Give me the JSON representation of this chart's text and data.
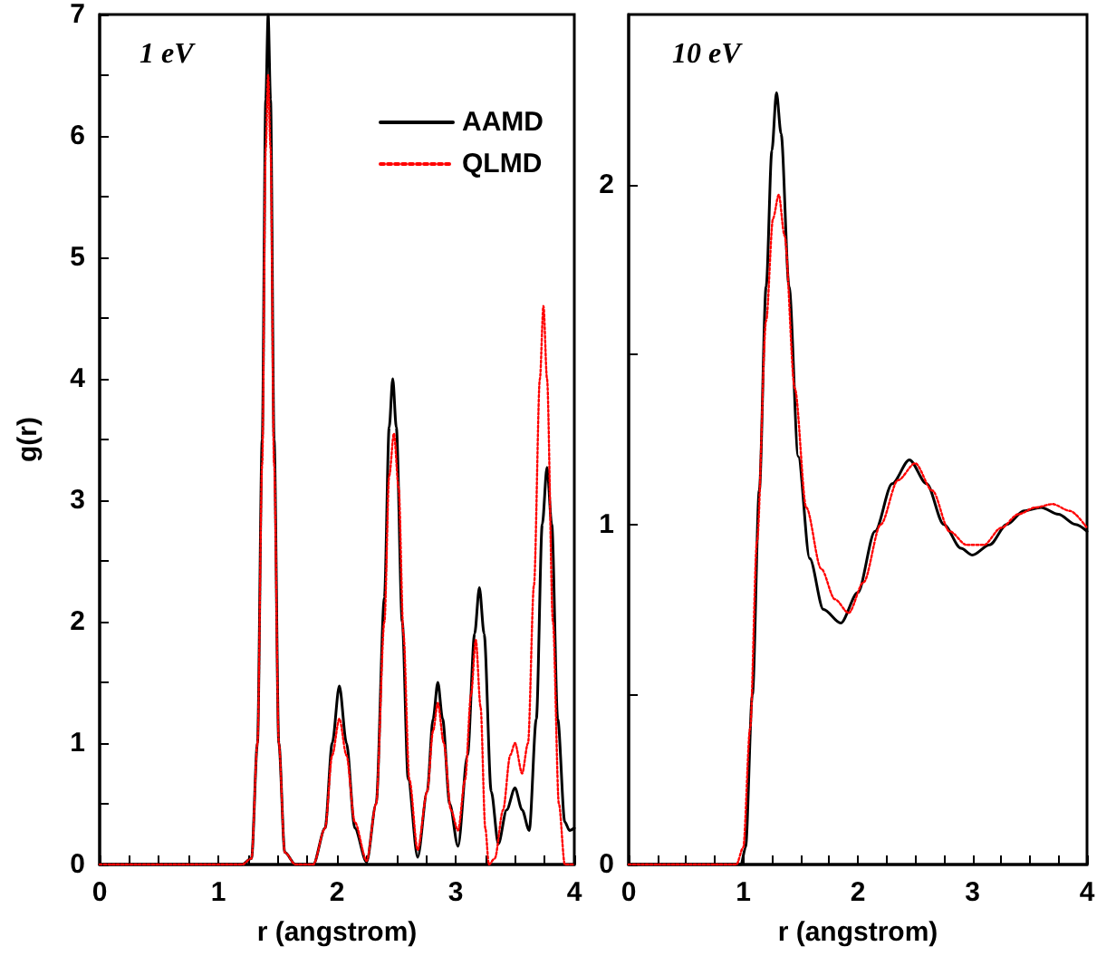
{
  "chart_data": [
    {
      "type": "line",
      "xlabel": "r (angstrom)",
      "ylabel": "g(r)",
      "annotations": [
        "1 eV"
      ],
      "legend": "top right",
      "grid": false,
      "marker": "none",
      "xlim": [
        0,
        4
      ],
      "ylim": [
        0,
        7
      ],
      "xticks": [
        0,
        {
          "value": 0.25,
          "label": null
        },
        {
          "value": 0.5,
          "label": null
        },
        {
          "value": 0.75,
          "label": null
        },
        1,
        {
          "value": 1.25,
          "label": null
        },
        {
          "value": 1.5,
          "label": null
        },
        {
          "value": 1.75,
          "label": null
        },
        2,
        {
          "value": 2.25,
          "label": null
        },
        {
          "value": 2.5,
          "label": null
        },
        {
          "value": 2.75,
          "label": null
        },
        3,
        {
          "value": 3.25,
          "label": null
        },
        {
          "value": 3.5,
          "label": null
        },
        {
          "value": 3.75,
          "label": null
        },
        4
      ],
      "yticks": [
        0,
        {
          "value": 0.5,
          "label": null
        },
        1,
        {
          "value": 1.5,
          "label": null
        },
        2,
        {
          "value": 2.5,
          "label": null
        },
        3,
        {
          "value": 3.5,
          "label": null
        },
        4,
        {
          "value": 4.5,
          "label": null
        },
        5,
        {
          "value": 5.5,
          "label": null
        },
        6,
        {
          "value": 6.5,
          "label": null
        },
        7
      ],
      "series": [
        {
          "name": "AAMD",
          "color": "#000000",
          "line_style": "solid",
          "x": [
            0,
            1.2,
            1.28,
            1.33,
            1.37,
            1.4,
            1.42,
            1.44,
            1.47,
            1.51,
            1.56,
            1.65,
            1.8,
            1.9,
            1.96,
            2.02,
            2.08,
            2.15,
            2.25,
            2.33,
            2.4,
            2.44,
            2.47,
            2.5,
            2.55,
            2.6,
            2.68,
            2.76,
            2.81,
            2.85,
            2.89,
            2.95,
            3.02,
            3.1,
            3.16,
            3.2,
            3.24,
            3.3,
            3.36,
            3.43,
            3.5,
            3.56,
            3.62,
            3.68,
            3.73,
            3.77,
            3.81,
            3.86,
            3.92,
            3.96,
            4.0
          ],
          "values": [
            0,
            0,
            0.05,
            1.0,
            3.5,
            6.3,
            7.0,
            6.3,
            3.5,
            1.0,
            0.1,
            0,
            0,
            0.3,
            1.0,
            1.47,
            1.0,
            0.3,
            0.02,
            0.5,
            2.2,
            3.6,
            4.0,
            3.6,
            2.0,
            0.7,
            0.06,
            0.6,
            1.2,
            1.5,
            1.2,
            0.5,
            0.15,
            0.9,
            1.9,
            2.28,
            1.9,
            0.6,
            0.17,
            0.45,
            0.63,
            0.45,
            0.28,
            1.2,
            2.8,
            3.27,
            2.8,
            1.2,
            0.35,
            0.28,
            0.3
          ]
        },
        {
          "name": "QLMD",
          "color": "#ff0000",
          "line_style": "dotted",
          "x": [
            0,
            1.2,
            1.28,
            1.33,
            1.37,
            1.4,
            1.42,
            1.44,
            1.47,
            1.51,
            1.56,
            1.65,
            1.8,
            1.9,
            1.96,
            2.02,
            2.08,
            2.15,
            2.25,
            2.33,
            2.4,
            2.44,
            2.48,
            2.52,
            2.56,
            2.61,
            2.68,
            2.76,
            2.81,
            2.85,
            2.9,
            2.96,
            3.02,
            3.08,
            3.13,
            3.17,
            3.21,
            3.25,
            3.28,
            3.33,
            3.4,
            3.46,
            3.5,
            3.56,
            3.61,
            3.66,
            3.71,
            3.74,
            3.77,
            3.82,
            3.87,
            3.92,
            4.0
          ],
          "values": [
            0,
            0,
            0.05,
            1.0,
            3.3,
            5.9,
            6.5,
            5.9,
            3.3,
            1.0,
            0.1,
            0,
            0,
            0.3,
            0.9,
            1.2,
            0.9,
            0.35,
            0.03,
            0.5,
            2.0,
            3.2,
            3.55,
            3.1,
            1.9,
            0.7,
            0.12,
            0.6,
            1.1,
            1.33,
            1.0,
            0.45,
            0.28,
            0.7,
            1.4,
            1.85,
            1.3,
            0.3,
            0,
            0.05,
            0.45,
            0.9,
            1.0,
            0.75,
            1.0,
            2.3,
            4.0,
            4.6,
            4.0,
            2.0,
            0.5,
            0,
            0
          ]
        }
      ]
    },
    {
      "type": "line",
      "xlabel": "r (angstrom)",
      "annotations": [
        "10 eV"
      ],
      "grid": false,
      "marker": "none",
      "xlim": [
        0,
        4
      ],
      "ylim": [
        0,
        2.5
      ],
      "xticks": [
        0,
        {
          "value": 0.25,
          "label": null
        },
        {
          "value": 0.5,
          "label": null
        },
        {
          "value": 0.75,
          "label": null
        },
        1,
        {
          "value": 1.25,
          "label": null
        },
        {
          "value": 1.5,
          "label": null
        },
        {
          "value": 1.75,
          "label": null
        },
        2,
        {
          "value": 2.25,
          "label": null
        },
        {
          "value": 2.5,
          "label": null
        },
        {
          "value": 2.75,
          "label": null
        },
        3,
        {
          "value": 3.25,
          "label": null
        },
        {
          "value": 3.5,
          "label": null
        },
        {
          "value": 3.75,
          "label": null
        },
        4
      ],
      "yticks": [
        0,
        {
          "value": 0.5,
          "label": null
        },
        1,
        {
          "value": 1.5,
          "label": null
        },
        2
      ],
      "series": [
        {
          "color": "#000000",
          "line_style": "solid",
          "x": [
            0,
            0.98,
            1.02,
            1.08,
            1.14,
            1.2,
            1.25,
            1.29,
            1.33,
            1.4,
            1.48,
            1.58,
            1.7,
            1.85,
            2.0,
            2.15,
            2.3,
            2.45,
            2.6,
            2.75,
            2.9,
            3.0,
            3.15,
            3.3,
            3.45,
            3.6,
            3.75,
            3.9,
            4.0
          ],
          "values": [
            0,
            0,
            0.05,
            0.5,
            1.1,
            1.7,
            2.1,
            2.27,
            2.15,
            1.7,
            1.2,
            0.9,
            0.75,
            0.71,
            0.8,
            0.98,
            1.12,
            1.19,
            1.12,
            1.0,
            0.93,
            0.91,
            0.94,
            1.0,
            1.04,
            1.05,
            1.03,
            1.0,
            0.98
          ]
        },
        {
          "color": "#ff0000",
          "line_style": "dotted",
          "x": [
            0,
            0.94,
            1.0,
            1.06,
            1.12,
            1.2,
            1.26,
            1.31,
            1.36,
            1.45,
            1.55,
            1.68,
            1.8,
            1.92,
            2.05,
            2.2,
            2.35,
            2.5,
            2.65,
            2.8,
            2.95,
            3.1,
            3.25,
            3.4,
            3.55,
            3.7,
            3.85,
            4.0
          ],
          "values": [
            0,
            0,
            0.05,
            0.4,
            0.95,
            1.6,
            1.9,
            1.97,
            1.85,
            1.4,
            1.05,
            0.87,
            0.78,
            0.74,
            0.83,
            1.0,
            1.13,
            1.18,
            1.1,
            0.98,
            0.94,
            0.94,
            0.99,
            1.03,
            1.05,
            1.06,
            1.04,
            0.99
          ]
        }
      ]
    }
  ]
}
